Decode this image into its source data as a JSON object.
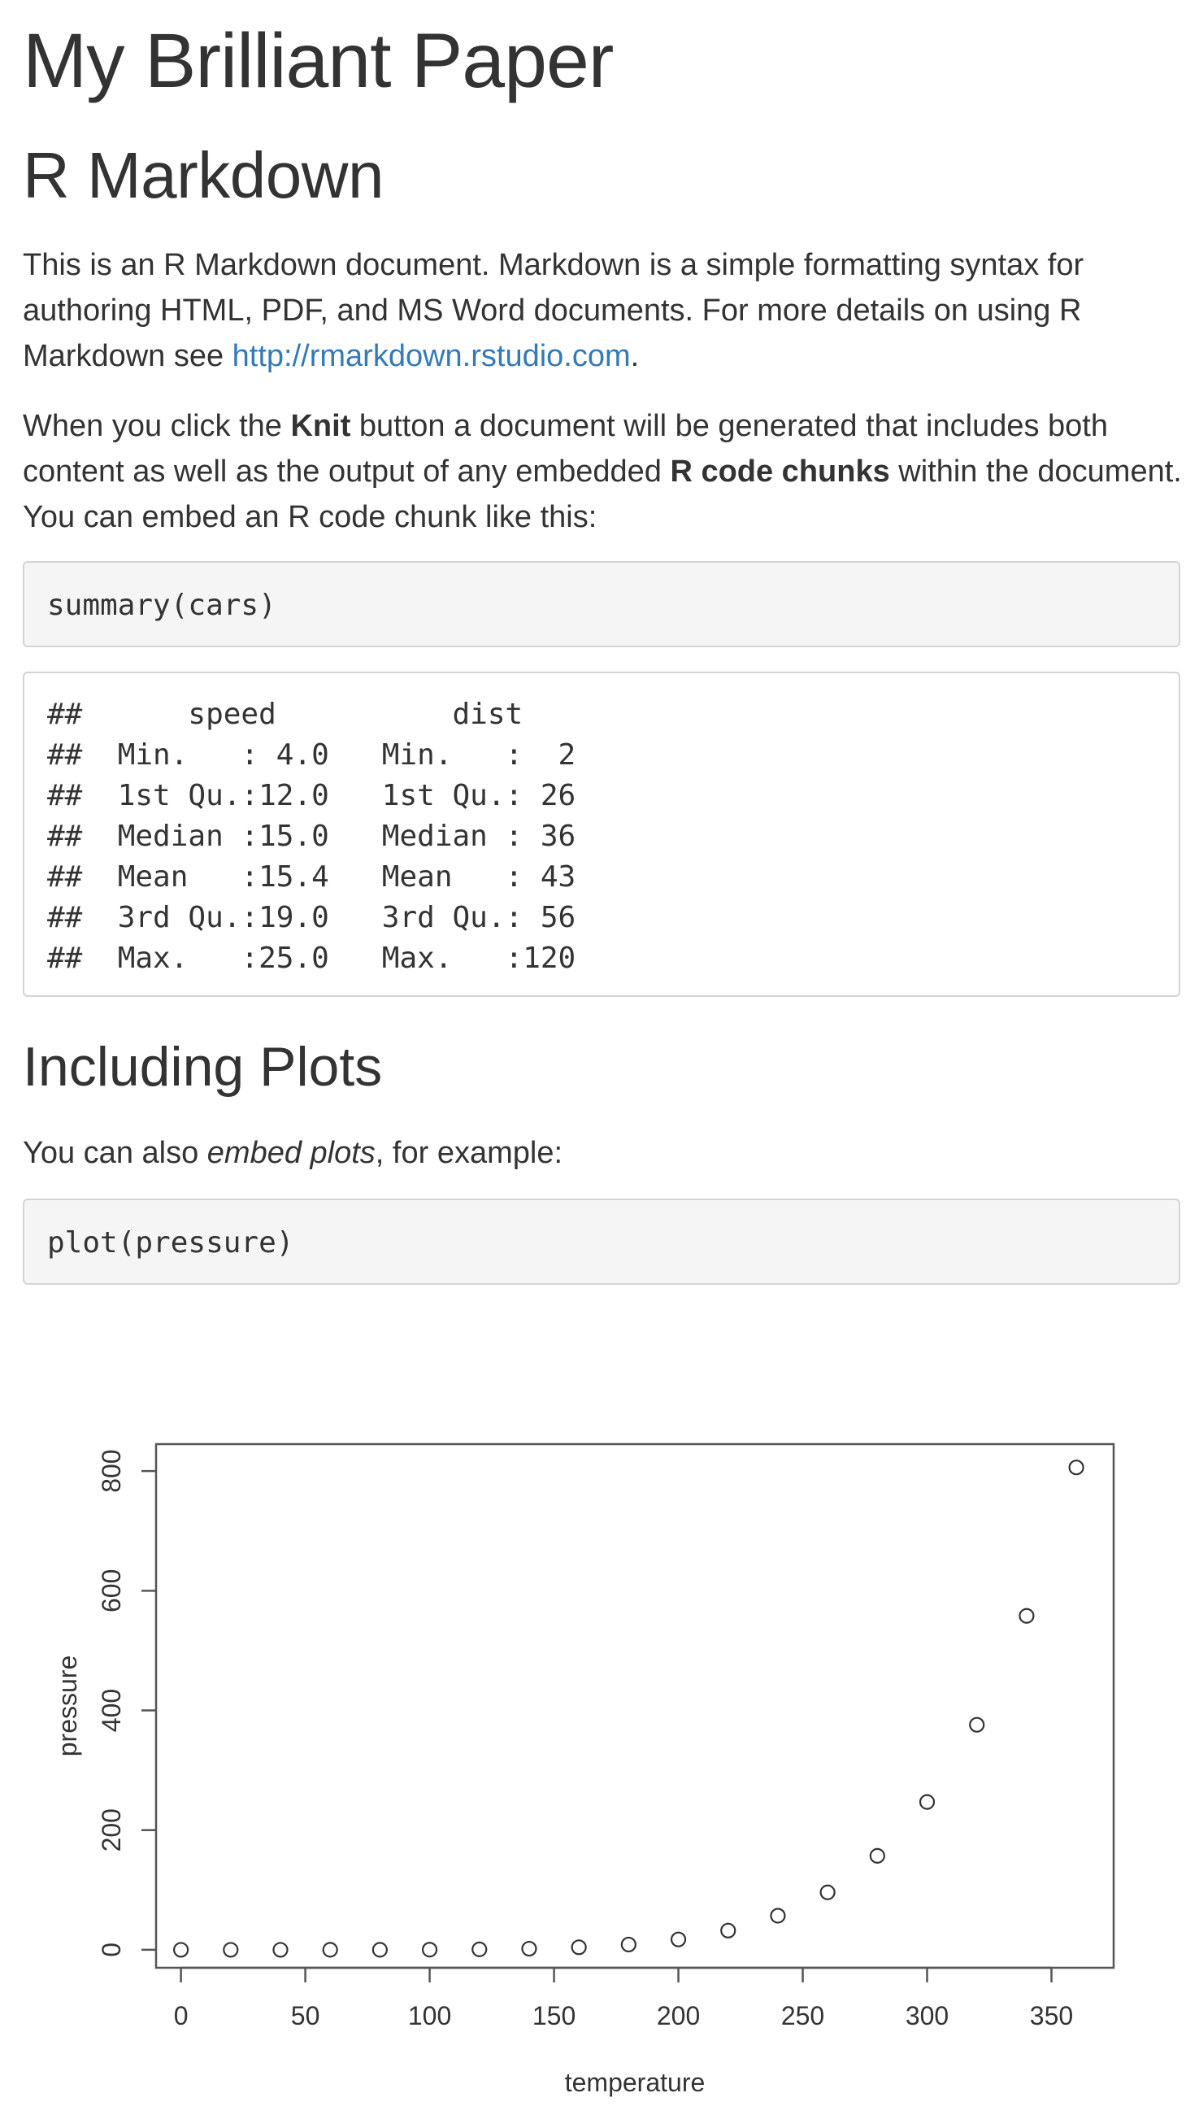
{
  "document": {
    "title": "My Brilliant Paper",
    "section1_heading": "R Markdown",
    "para1": {
      "text_before_link": "This is an R Markdown document. Markdown is a simple formatting syntax for authoring HTML, PDF, and MS Word documents. For more details on using R Markdown see ",
      "link_text": "http://rmarkdown.rstudio.com",
      "text_after_link": "."
    },
    "para2": {
      "part1": "When you click the ",
      "bold1": "Knit",
      "part2": " button a document will be generated that includes both content as well as the output of any embedded ",
      "bold2": "R code chunks",
      "part3": " within the document. You can embed an R code chunk like this:"
    },
    "code1": "summary(cars)",
    "output1_lines": [
      "##      speed          dist    ",
      "##  Min.   : 4.0   Min.   :  2  ",
      "##  1st Qu.:12.0   1st Qu.: 26  ",
      "##  Median :15.0   Median : 36  ",
      "##  Mean   :15.4   Mean   : 43  ",
      "##  3rd Qu.:19.0   3rd Qu.: 56  ",
      "##  Max.   :25.0   Max.   :120  "
    ],
    "section2_heading": "Including Plots",
    "para3": {
      "part1": "You can also ",
      "italic": "embed plots",
      "part2": ", for example:"
    },
    "code2": "plot(pressure)"
  },
  "colors": {
    "text": "#333333",
    "link": "#337ab7",
    "code_bg": "#f5f5f5",
    "code_border": "#d4d4d4"
  },
  "chart_data": {
    "type": "scatter",
    "title": "",
    "xlabel": "temperature",
    "ylabel": "pressure",
    "x": [
      0,
      20,
      40,
      60,
      80,
      100,
      120,
      140,
      160,
      180,
      200,
      220,
      240,
      260,
      280,
      300,
      320,
      340,
      360
    ],
    "y": [
      0.0002,
      0.0012,
      0.006,
      0.03,
      0.09,
      0.27,
      0.75,
      1.85,
      4.2,
      8.8,
      17.3,
      32.1,
      57,
      96,
      157,
      247,
      376,
      558,
      806
    ],
    "xlim": [
      -10,
      375
    ],
    "ylim": [
      -30,
      845
    ],
    "xticks": [
      0,
      50,
      100,
      150,
      200,
      250,
      300,
      350
    ],
    "yticks": [
      0,
      200,
      400,
      600,
      800
    ],
    "marker": "open-circle",
    "grid": false,
    "legend": "none"
  }
}
